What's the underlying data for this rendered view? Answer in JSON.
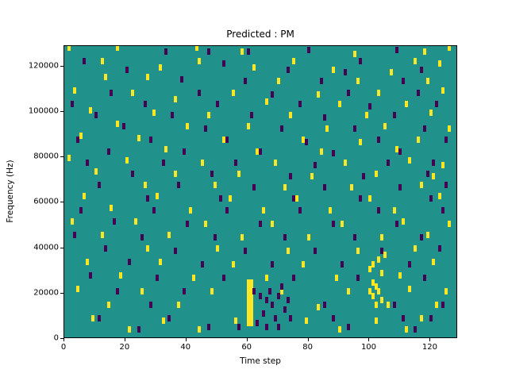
{
  "chart_data": {
    "type": "heatmap",
    "title": "Predicted : PM",
    "xlabel": "Time step",
    "ylabel": "Frequency (Hz)",
    "xlim": [
      0,
      129
    ],
    "ylim": [
      0,
      129000
    ],
    "x_ticks": [
      0,
      20,
      40,
      60,
      80,
      100,
      120
    ],
    "y_ticks": [
      0,
      20000,
      40000,
      60000,
      80000,
      100000,
      120000
    ],
    "grid": false,
    "legend": "none",
    "y_scale": 1000,
    "colors": {
      "background": "#21918c",
      "high": "#fde725",
      "low": "#440154",
      "frame": "#000000"
    },
    "cells_high": [
      [
        1,
        127
      ],
      [
        17,
        127
      ],
      [
        43,
        127
      ],
      [
        126,
        127
      ],
      [
        58,
        125
      ],
      [
        95,
        124
      ],
      [
        118,
        125
      ],
      [
        12,
        121
      ],
      [
        44,
        121
      ],
      [
        75,
        121
      ],
      [
        115,
        121
      ],
      [
        123,
        120
      ],
      [
        31,
        118
      ],
      [
        62,
        118
      ],
      [
        88,
        117
      ],
      [
        107,
        116
      ],
      [
        13,
        114
      ],
      [
        27,
        114
      ],
      [
        70,
        112
      ],
      [
        96,
        112
      ],
      [
        119,
        112
      ],
      [
        3,
        108
      ],
      [
        22,
        107
      ],
      [
        55,
        107
      ],
      [
        83,
        106
      ],
      [
        103,
        107
      ],
      [
        124,
        108
      ],
      [
        36,
        104
      ],
      [
        66,
        103
      ],
      [
        90,
        102
      ],
      [
        112,
        102
      ],
      [
        8,
        99
      ],
      [
        29,
        98
      ],
      [
        47,
        97
      ],
      [
        74,
        97
      ],
      [
        99,
        97
      ],
      [
        120,
        98
      ],
      [
        17,
        93
      ],
      [
        40,
        92
      ],
      [
        60,
        92
      ],
      [
        86,
        91
      ],
      [
        105,
        92
      ],
      [
        126,
        91
      ],
      [
        5,
        88
      ],
      [
        24,
        87
      ],
      [
        52,
        86
      ],
      [
        78,
        86
      ],
      [
        97,
        85
      ],
      [
        116,
        86
      ],
      [
        33,
        82
      ],
      [
        63,
        81
      ],
      [
        84,
        81
      ],
      [
        109,
        82
      ],
      [
        1,
        78
      ],
      [
        20,
        77
      ],
      [
        45,
        76
      ],
      [
        69,
        76
      ],
      [
        92,
        76
      ],
      [
        113,
        77
      ],
      [
        124,
        75
      ],
      [
        10,
        72
      ],
      [
        36,
        71
      ],
      [
        57,
        71
      ],
      [
        81,
        70
      ],
      [
        102,
        71
      ],
      [
        121,
        70
      ],
      [
        26,
        66
      ],
      [
        49,
        66
      ],
      [
        72,
        65
      ],
      [
        94,
        65
      ],
      [
        117,
        66
      ],
      [
        6,
        61
      ],
      [
        30,
        61
      ],
      [
        54,
        60
      ],
      [
        76,
        60
      ],
      [
        100,
        60
      ],
      [
        123,
        61
      ],
      [
        15,
        56
      ],
      [
        41,
        55
      ],
      [
        65,
        55
      ],
      [
        87,
        55
      ],
      [
        108,
        55
      ],
      [
        2,
        50
      ],
      [
        23,
        50
      ],
      [
        46,
        49
      ],
      [
        68,
        49
      ],
      [
        91,
        49
      ],
      [
        111,
        50
      ],
      [
        126,
        49
      ],
      [
        12,
        44
      ],
      [
        34,
        44
      ],
      [
        58,
        43
      ],
      [
        80,
        43
      ],
      [
        104,
        43
      ],
      [
        119,
        44
      ],
      [
        27,
        38
      ],
      [
        50,
        38
      ],
      [
        73,
        37
      ],
      [
        96,
        37
      ],
      [
        115,
        38
      ],
      [
        7,
        32
      ],
      [
        31,
        32
      ],
      [
        55,
        31
      ],
      [
        78,
        31
      ],
      [
        101,
        31
      ],
      [
        103,
        33
      ],
      [
        105,
        35
      ],
      [
        100,
        29
      ],
      [
        104,
        27
      ],
      [
        121,
        32
      ],
      [
        18,
        26
      ],
      [
        42,
        25
      ],
      [
        66,
        25
      ],
      [
        89,
        25
      ],
      [
        110,
        26
      ],
      [
        4,
        20
      ],
      [
        25,
        19
      ],
      [
        48,
        19
      ],
      [
        71,
        19
      ],
      [
        93,
        19
      ],
      [
        113,
        20
      ],
      [
        125,
        19
      ],
      [
        14,
        13
      ],
      [
        37,
        13
      ],
      [
        83,
        12
      ],
      [
        106,
        13
      ],
      [
        122,
        13
      ],
      [
        9,
        7
      ],
      [
        32,
        6
      ],
      [
        56,
        6
      ],
      [
        79,
        6
      ],
      [
        102,
        6
      ],
      [
        117,
        7
      ],
      [
        21,
        2
      ],
      [
        44,
        2
      ],
      [
        90,
        2
      ],
      [
        112,
        2
      ],
      [
        60,
        23
      ],
      [
        61,
        23
      ],
      [
        60,
        21
      ],
      [
        61,
        21
      ],
      [
        60,
        19
      ],
      [
        61,
        19
      ],
      [
        60,
        17
      ],
      [
        61,
        17
      ],
      [
        60,
        15
      ],
      [
        61,
        15
      ],
      [
        60,
        13
      ],
      [
        61,
        13
      ],
      [
        60,
        11
      ],
      [
        61,
        11
      ],
      [
        60,
        9
      ],
      [
        61,
        9
      ],
      [
        60,
        7
      ],
      [
        61,
        7
      ],
      [
        60,
        5
      ],
      [
        61,
        5
      ],
      [
        101,
        23
      ],
      [
        102,
        21
      ],
      [
        100,
        19
      ],
      [
        103,
        19
      ],
      [
        101,
        17
      ],
      [
        104,
        15
      ],
      [
        102,
        13
      ]
    ],
    "cells_low": [
      [
        33,
        125
      ],
      [
        47,
        125
      ],
      [
        60,
        125
      ],
      [
        80,
        126
      ],
      [
        109,
        126
      ],
      [
        6,
        121
      ],
      [
        52,
        120
      ],
      [
        97,
        121
      ],
      [
        20,
        117
      ],
      [
        73,
        117
      ],
      [
        92,
        116
      ],
      [
        117,
        117
      ],
      [
        38,
        113
      ],
      [
        59,
        112
      ],
      [
        84,
        112
      ],
      [
        111,
        112
      ],
      [
        15,
        107
      ],
      [
        44,
        107
      ],
      [
        68,
        106
      ],
      [
        93,
        107
      ],
      [
        116,
        107
      ],
      [
        2,
        102
      ],
      [
        26,
        102
      ],
      [
        50,
        102
      ],
      [
        77,
        102
      ],
      [
        100,
        101
      ],
      [
        122,
        102
      ],
      [
        10,
        97
      ],
      [
        35,
        97
      ],
      [
        61,
        97
      ],
      [
        85,
        96
      ],
      [
        108,
        97
      ],
      [
        19,
        92
      ],
      [
        46,
        91
      ],
      [
        71,
        91
      ],
      [
        95,
        91
      ],
      [
        118,
        91
      ],
      [
        4,
        86
      ],
      [
        28,
        86
      ],
      [
        53,
        86
      ],
      [
        79,
        85
      ],
      [
        103,
        86
      ],
      [
        125,
        86
      ],
      [
        14,
        81
      ],
      [
        39,
        81
      ],
      [
        64,
        81
      ],
      [
        88,
        80
      ],
      [
        110,
        81
      ],
      [
        7,
        76
      ],
      [
        32,
        76
      ],
      [
        56,
        76
      ],
      [
        82,
        75
      ],
      [
        106,
        76
      ],
      [
        121,
        76
      ],
      [
        22,
        71
      ],
      [
        48,
        71
      ],
      [
        74,
        70
      ],
      [
        98,
        70
      ],
      [
        119,
        71
      ],
      [
        11,
        66
      ],
      [
        37,
        66
      ],
      [
        62,
        65
      ],
      [
        85,
        65
      ],
      [
        110,
        65
      ],
      [
        125,
        66
      ],
      [
        27,
        60
      ],
      [
        51,
        60
      ],
      [
        75,
        60
      ],
      [
        97,
        60
      ],
      [
        120,
        60
      ],
      [
        5,
        55
      ],
      [
        29,
        55
      ],
      [
        53,
        55
      ],
      [
        77,
        55
      ],
      [
        103,
        55
      ],
      [
        124,
        55
      ],
      [
        16,
        50
      ],
      [
        40,
        49
      ],
      [
        64,
        49
      ],
      [
        88,
        49
      ],
      [
        109,
        49
      ],
      [
        3,
        44
      ],
      [
        25,
        43
      ],
      [
        49,
        43
      ],
      [
        72,
        43
      ],
      [
        95,
        43
      ],
      [
        117,
        43
      ],
      [
        13,
        38
      ],
      [
        36,
        37
      ],
      [
        59,
        37
      ],
      [
        82,
        37
      ],
      [
        104,
        37
      ],
      [
        123,
        38
      ],
      [
        21,
        32
      ],
      [
        45,
        31
      ],
      [
        68,
        31
      ],
      [
        91,
        31
      ],
      [
        113,
        31
      ],
      [
        8,
        26
      ],
      [
        30,
        25
      ],
      [
        52,
        25
      ],
      [
        75,
        25
      ],
      [
        96,
        25
      ],
      [
        118,
        25
      ],
      [
        17,
        19
      ],
      [
        39,
        19
      ],
      [
        62,
        19
      ],
      [
        64,
        17
      ],
      [
        66,
        15
      ],
      [
        68,
        13
      ],
      [
        70,
        17
      ],
      [
        72,
        11
      ],
      [
        65,
        9
      ],
      [
        69,
        7
      ],
      [
        73,
        15
      ],
      [
        67,
        19
      ],
      [
        71,
        21
      ],
      [
        63,
        5
      ],
      [
        74,
        7
      ],
      [
        66,
        3
      ],
      [
        70,
        3
      ],
      [
        28,
        13
      ],
      [
        85,
        13
      ],
      [
        108,
        13
      ],
      [
        124,
        13
      ],
      [
        11,
        7
      ],
      [
        34,
        7
      ],
      [
        57,
        3
      ],
      [
        88,
        7
      ],
      [
        111,
        7
      ],
      [
        120,
        7
      ],
      [
        24,
        2
      ],
      [
        47,
        3
      ],
      [
        93,
        3
      ],
      [
        115,
        2
      ]
    ]
  }
}
